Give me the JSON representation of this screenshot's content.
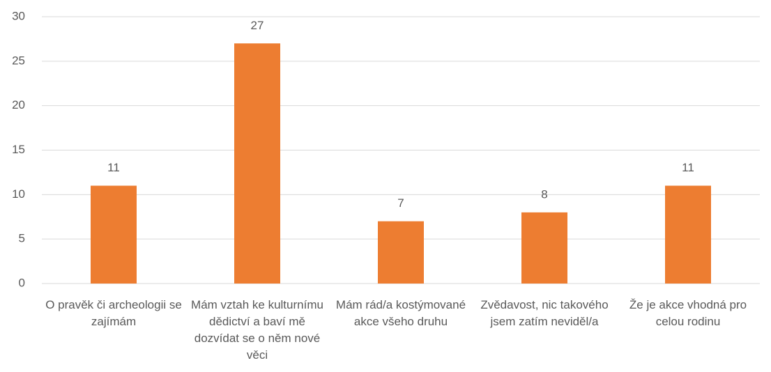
{
  "chart_data": {
    "type": "bar",
    "categories": [
      "O pravěk či archeologii se zajímám",
      "Mám vztah ke kulturnímu dědictví a baví mě dozvídat se o něm nové věci",
      "Mám rád/a kostýmované akce všeho druhu",
      "Zvědavost, nic takového jsem zatím neviděl/a",
      "Že je akce vhodná pro celou rodinu"
    ],
    "values": [
      11,
      27,
      7,
      8,
      11
    ],
    "color": "#ed7d31",
    "ylim": [
      0,
      30
    ],
    "yticks": [
      0,
      5,
      10,
      15,
      20,
      25,
      30
    ],
    "grid": true,
    "data_labels": true
  }
}
